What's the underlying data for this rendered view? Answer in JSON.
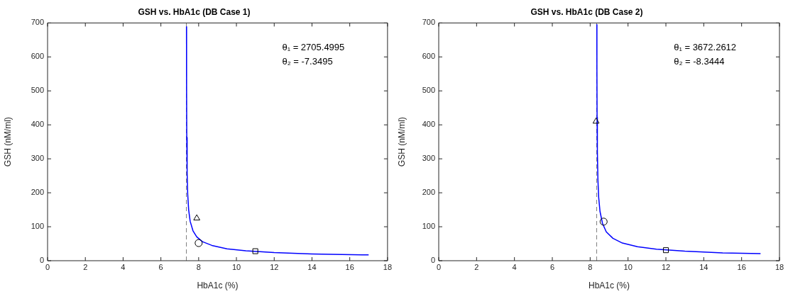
{
  "chart_data": [
    {
      "type": "line",
      "title": "GSH vs. HbA1c (DB Case 1)",
      "xlabel": "HbA1c (%)",
      "ylabel": "GSH (nM/ml)",
      "xlim": [
        0,
        18
      ],
      "xticks": [
        0,
        2,
        4,
        6,
        8,
        10,
        12,
        14,
        16,
        18
      ],
      "ylim": [
        0,
        700
      ],
      "yticks": [
        0,
        100,
        200,
        300,
        400,
        500,
        600,
        700
      ],
      "annotations": [
        "θ₁ = 2705.4995",
        "θ₂ = -7.3495"
      ],
      "ref_lines": [
        {
          "axis": "x",
          "value": 7.3495,
          "color": "#808080",
          "line_style": "dashed"
        }
      ],
      "series": [
        {
          "type": "line",
          "color": "#0000ff",
          "marker": "none",
          "x": [
            7.3552,
            7.36,
            7.37,
            7.39,
            7.42,
            7.47,
            7.55,
            7.7,
            7.9,
            8.2,
            8.7,
            9.5,
            10.5,
            12,
            14,
            17
          ],
          "values": [
            689,
            508,
            363,
            258,
            196,
            150,
            116,
            88,
            70,
            56,
            45,
            35,
            29,
            24,
            20,
            17
          ]
        },
        {
          "type": "scatter",
          "color": "#000000",
          "marker": "triangle",
          "x": [
            7.9
          ],
          "values": [
            125
          ]
        },
        {
          "type": "scatter",
          "color": "#000000",
          "marker": "circle",
          "x": [
            8.0
          ],
          "values": [
            52
          ]
        },
        {
          "type": "scatter",
          "color": "#000000",
          "marker": "square",
          "x": [
            11
          ],
          "values": [
            28
          ]
        }
      ]
    },
    {
      "type": "line",
      "title": "GSH vs. HbA1c (DB Case 2)",
      "xlabel": "HbA1c (%)",
      "ylabel": "GSH (nM/ml)",
      "xlim": [
        0,
        18
      ],
      "xticks": [
        0,
        2,
        4,
        6,
        8,
        10,
        12,
        14,
        16,
        18
      ],
      "ylim": [
        0,
        700
      ],
      "yticks": [
        0,
        100,
        200,
        300,
        400,
        500,
        600,
        700
      ],
      "annotations": [
        "θ₁ = 3672.2612",
        "θ₂ = -8.3444"
      ],
      "ref_lines": [
        {
          "axis": "x",
          "value": 8.3444,
          "color": "#808080",
          "line_style": "dashed"
        }
      ],
      "series": [
        {
          "type": "line",
          "color": "#0000ff",
          "marker": "none",
          "x": [
            8.352,
            8.356,
            8.365,
            8.38,
            8.41,
            8.45,
            8.52,
            8.65,
            8.85,
            9.2,
            9.7,
            10.5,
            11.5,
            13,
            15,
            17
          ],
          "values": [
            695,
            563,
            422,
            321,
            237,
            186,
            145,
            110,
            85,
            66,
            52,
            41,
            34,
            28,
            23,
            21
          ]
        },
        {
          "type": "scatter",
          "color": "#000000",
          "marker": "triangle",
          "x": [
            8.31
          ],
          "values": [
            410
          ]
        },
        {
          "type": "scatter",
          "color": "#000000",
          "marker": "circle",
          "x": [
            8.71
          ],
          "values": [
            115
          ]
        },
        {
          "type": "scatter",
          "color": "#000000",
          "marker": "square",
          "x": [
            12
          ],
          "values": [
            31
          ]
        }
      ]
    }
  ]
}
